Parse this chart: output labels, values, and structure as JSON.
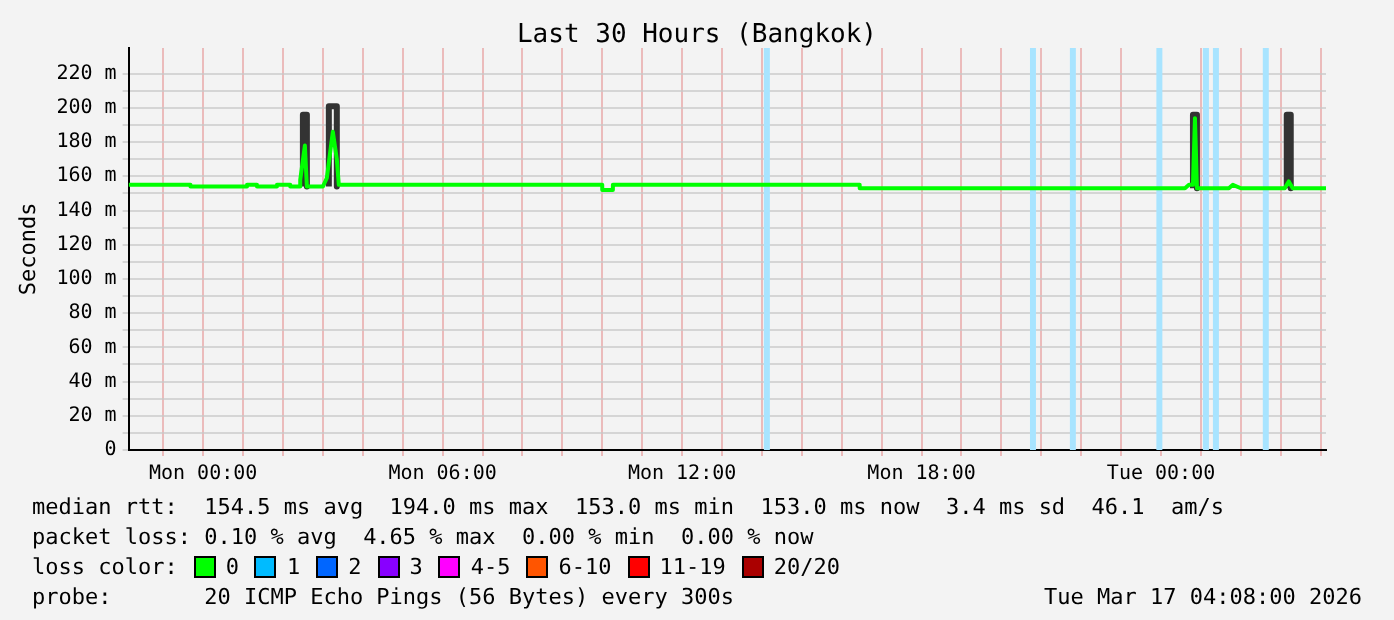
{
  "chart_data": {
    "type": "line",
    "title": "Last 30 Hours (Bangkok)",
    "ylabel": "Seconds",
    "legend_title": "loss color:",
    "legend": "bottom",
    "grid": true,
    "marker": "none",
    "line_style": "solid",
    "xlim": [
      "2026-03-15T22:08",
      "2026-03-17T04:08"
    ],
    "xticks": [
      {
        "value": "2026-03-15T23:00",
        "label": null
      },
      {
        "value": "2026-03-16T00:00",
        "label": "Mon 00:00"
      },
      {
        "value": "2026-03-16T01:00",
        "label": null
      },
      {
        "value": "2026-03-16T02:00",
        "label": null
      },
      {
        "value": "2026-03-16T03:00",
        "label": null
      },
      {
        "value": "2026-03-16T04:00",
        "label": null
      },
      {
        "value": "2026-03-16T05:00",
        "label": null
      },
      {
        "value": "2026-03-16T06:00",
        "label": "Mon 06:00"
      },
      {
        "value": "2026-03-16T07:00",
        "label": null
      },
      {
        "value": "2026-03-16T08:00",
        "label": null
      },
      {
        "value": "2026-03-16T09:00",
        "label": null
      },
      {
        "value": "2026-03-16T10:00",
        "label": null
      },
      {
        "value": "2026-03-16T11:00",
        "label": null
      },
      {
        "value": "2026-03-16T12:00",
        "label": "Mon 12:00"
      },
      {
        "value": "2026-03-16T13:00",
        "label": null
      },
      {
        "value": "2026-03-16T14:00",
        "label": null
      },
      {
        "value": "2026-03-16T15:00",
        "label": null
      },
      {
        "value": "2026-03-16T16:00",
        "label": null
      },
      {
        "value": "2026-03-16T17:00",
        "label": null
      },
      {
        "value": "2026-03-16T18:00",
        "label": "Mon 18:00"
      },
      {
        "value": "2026-03-16T19:00",
        "label": null
      },
      {
        "value": "2026-03-16T20:00",
        "label": null
      },
      {
        "value": "2026-03-16T21:00",
        "label": null
      },
      {
        "value": "2026-03-16T22:00",
        "label": null
      },
      {
        "value": "2026-03-16T23:00",
        "label": null
      },
      {
        "value": "2026-03-17T00:00",
        "label": "Tue 00:00"
      },
      {
        "value": "2026-03-17T01:00",
        "label": null
      },
      {
        "value": "2026-03-17T02:00",
        "label": null
      },
      {
        "value": "2026-03-17T03:00",
        "label": null
      },
      {
        "value": "2026-03-17T04:00",
        "label": null
      }
    ],
    "ylim": [
      0,
      235
    ],
    "yticks": [
      0,
      {
        "value": 10,
        "label": null
      },
      {
        "value": 20,
        "label": "20 m"
      },
      {
        "value": 30,
        "label": null
      },
      {
        "value": 40,
        "label": "40 m"
      },
      {
        "value": 50,
        "label": null
      },
      {
        "value": 60,
        "label": "60 m"
      },
      {
        "value": 70,
        "label": null
      },
      {
        "value": 80,
        "label": "80 m"
      },
      {
        "value": 90,
        "label": null
      },
      {
        "value": 100,
        "label": "100 m"
      },
      {
        "value": 110,
        "label": null
      },
      {
        "value": 120,
        "label": "120 m"
      },
      {
        "value": 130,
        "label": null
      },
      {
        "value": 140,
        "label": "140 m"
      },
      {
        "value": 150,
        "label": null
      },
      {
        "value": 160,
        "label": "160 m"
      },
      {
        "value": 170,
        "label": null
      },
      {
        "value": 180,
        "label": "180 m"
      },
      {
        "value": 190,
        "label": null
      },
      {
        "value": 200,
        "label": "200 m"
      },
      {
        "value": 210,
        "label": null
      },
      {
        "value": 220,
        "label": "220 m"
      }
    ],
    "series": [
      {
        "color": "#333333",
        "x": [
          "2026-03-16T02:30",
          "2026-03-16T02:30",
          "2026-03-16T02:36",
          "2026-03-16T02:36",
          null,
          "2026-03-16T03:09",
          "2026-03-16T03:09",
          "2026-03-16T03:21",
          "2026-03-16T03:21",
          null,
          "2026-03-17T00:48",
          "2026-03-17T00:48",
          "2026-03-17T00:54",
          "2026-03-17T00:54",
          null,
          "2026-03-17T03:09",
          "2026-03-17T03:09",
          "2026-03-17T03:15",
          "2026-03-17T03:15"
        ],
        "values": [
          154,
          196,
          196,
          154,
          null,
          154,
          201,
          201,
          154,
          null,
          153,
          196,
          196,
          153,
          null,
          153,
          196,
          196,
          153
        ]
      },
      {
        "name": "0",
        "color": "#00ff00",
        "x": [
          "2026-03-15T22:08",
          "2026-03-15T23:41",
          "2026-03-15T23:41",
          "2026-03-16T01:06",
          "2026-03-16T01:06",
          "2026-03-16T01:21",
          "2026-03-16T01:21",
          "2026-03-16T01:51",
          "2026-03-16T01:51",
          "2026-03-16T02:11",
          "2026-03-16T02:11",
          "2026-03-16T02:26",
          "2026-03-16T02:26",
          "2026-03-16T02:33",
          "2026-03-16T02:36",
          "2026-03-16T03:00",
          "2026-03-16T03:06",
          "2026-03-16T03:15",
          "2026-03-16T03:21",
          "2026-03-16T03:24",
          "2026-03-16T10:00",
          "2026-03-16T10:00",
          "2026-03-16T10:16",
          "2026-03-16T10:16",
          "2026-03-16T16:27",
          "2026-03-16T16:27",
          "2026-03-17T00:36",
          "2026-03-17T00:42",
          "2026-03-17T00:48",
          "2026-03-17T00:51",
          "2026-03-17T00:54",
          "2026-03-17T01:00",
          "2026-03-17T01:42",
          "2026-03-17T01:48",
          "2026-03-17T02:00",
          "2026-03-17T03:06",
          "2026-03-17T03:12",
          "2026-03-17T03:18",
          "2026-03-17T04:08"
        ],
        "values": [
          155,
          155,
          154,
          154,
          155,
          155,
          154,
          154,
          155,
          155,
          154,
          154,
          158,
          178,
          154,
          154,
          159,
          186,
          170,
          155,
          155,
          152,
          152,
          155,
          155,
          153,
          153,
          155,
          155,
          194,
          153,
          153,
          153,
          155,
          153,
          153,
          157,
          153,
          153
        ]
      },
      {
        "name": "1",
        "color": "#00bbff"
      },
      {
        "name": "2",
        "color": "#0066ff"
      },
      {
        "name": "3",
        "color": "#8800ff"
      },
      {
        "name": "4-5",
        "color": "#ff00ff"
      },
      {
        "name": "6-10",
        "color": "#ff5500"
      },
      {
        "name": "11-19",
        "color": "#ff0000"
      },
      {
        "name": "20/20",
        "color": "#aa0000"
      }
    ],
    "bands": [
      {
        "axis": "x",
        "from": "2026-03-16T14:03",
        "to": "2026-03-16T14:12",
        "color": "#a8e4ff"
      },
      {
        "axis": "x",
        "from": "2026-03-16T20:43",
        "to": "2026-03-16T20:52",
        "color": "#a8e4ff"
      },
      {
        "axis": "x",
        "from": "2026-03-16T21:43",
        "to": "2026-03-16T21:52",
        "color": "#a8e4ff"
      },
      {
        "axis": "x",
        "from": "2026-03-16T23:53",
        "to": "2026-03-17T00:02",
        "color": "#a8e4ff"
      },
      {
        "axis": "x",
        "from": "2026-03-17T01:03",
        "to": "2026-03-17T01:12",
        "color": "#a8e4ff"
      },
      {
        "axis": "x",
        "from": "2026-03-17T01:18",
        "to": "2026-03-17T01:27",
        "color": "#a8e4ff"
      },
      {
        "axis": "x",
        "from": "2026-03-17T02:33",
        "to": "2026-03-17T02:42",
        "color": "#a8e4ff"
      }
    ],
    "annotations": [
      "median rtt:  154.5 ms avg  194.0 ms max  153.0 ms min  153.0 ms now  3.4 ms sd  46.1  am/s",
      "packet loss: 0.10 % avg  4.65 % max  0.00 % min  0.00 % now",
      "probe:       20 ICMP Echo Pings (56 Bytes) every 300s",
      "Tue Mar 17 04:08:00 2026"
    ]
  }
}
